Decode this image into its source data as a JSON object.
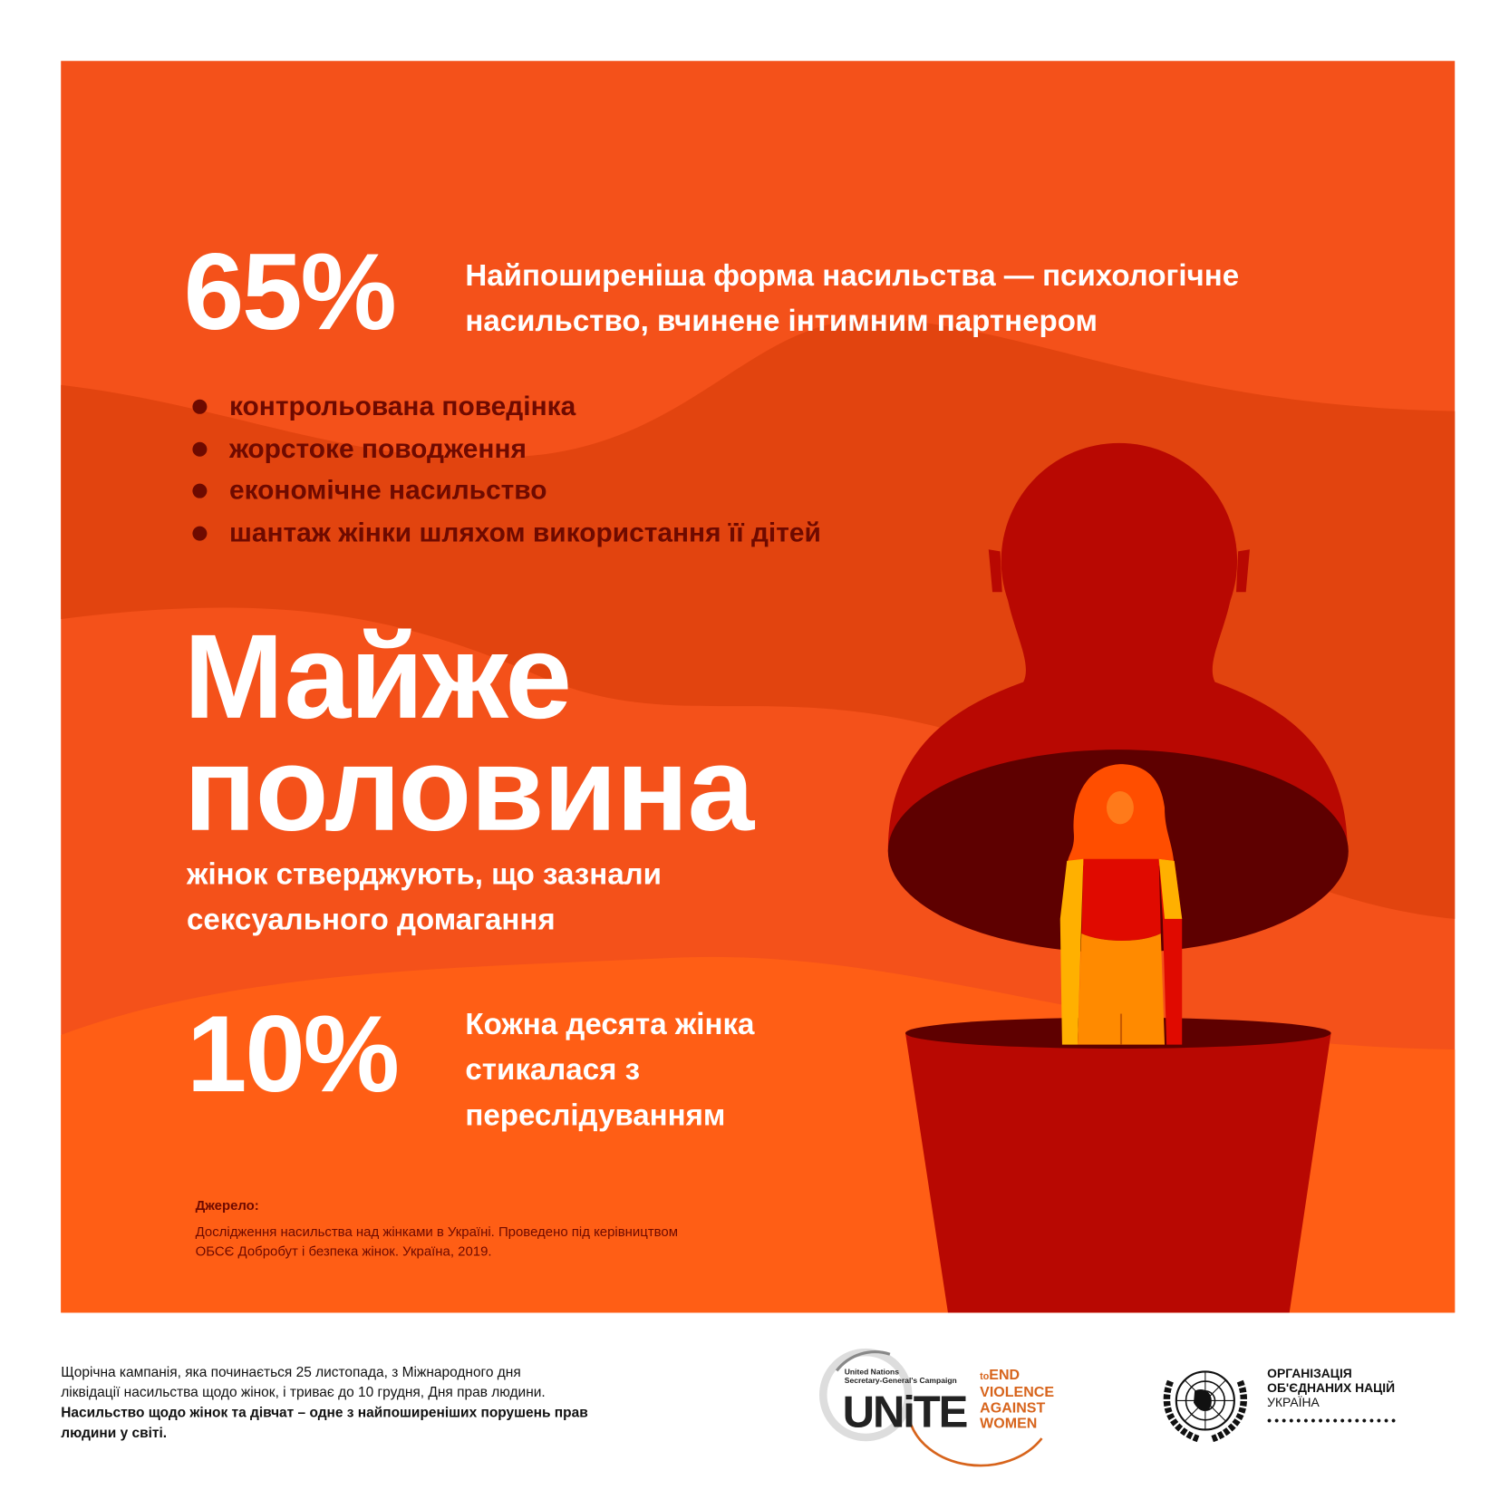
{
  "stat1": {
    "value": "65%",
    "text": [
      "Найпоширеніша форма насильства — психологічне",
      "насильство, вчинене інтимним партнером"
    ]
  },
  "bullets": [
    "контрольована поведінка",
    "жорстоке поводження",
    "економічне насильство",
    "шантаж жінки шляхом використання її дітей"
  ],
  "stat2": {
    "headline": [
      "Майже",
      "половина"
    ],
    "text": [
      "жінок стверджують, що зазнали",
      "сексуального домагання"
    ]
  },
  "stat3": {
    "value": "10%",
    "text": [
      "Кожна десята жінка",
      "стикалася з",
      "переслідуванням"
    ]
  },
  "source": {
    "label": "Джерело:",
    "lines": [
      "Дослідження насильства над жінками в Україні. Проведено під керівництвом",
      "ОБСЄ Добробут і безпека жінок. Україна, 2019."
    ]
  },
  "footer": {
    "lines": [
      "Щорічна кампанія, яка починається 25 листопада, з Міжнародного дня",
      "ліквідації насильства щодо жінок, і триває до 10 грудня, Дня прав людини."
    ],
    "bold_lines": [
      "Насильство щодо жінок та дівчат – одне з найпоширеніших порушень прав",
      "людини у світі."
    ]
  },
  "logos": {
    "unite": {
      "small1": "United Nations",
      "small2": "Secretary-General's Campaign",
      "word": "UNiTE",
      "to": "to",
      "end": "END",
      "rest": [
        "VIOLENCE",
        "AGAINST",
        "WOMEN"
      ]
    },
    "un": {
      "line1": "ОРГАНІЗАЦІЯ",
      "line2": "ОБ'ЄДНАНИХ НАЦІЙ",
      "line3": "УКРАЇНА"
    }
  },
  "colors": {
    "panel": "#f4511a",
    "dark_band": "#e2440f",
    "light_band": "#ff5e15",
    "doll": "#b80802",
    "doll_inside": "#5e0000",
    "text_dark": "#6e0a00",
    "unite_orange": "#d7641c"
  }
}
